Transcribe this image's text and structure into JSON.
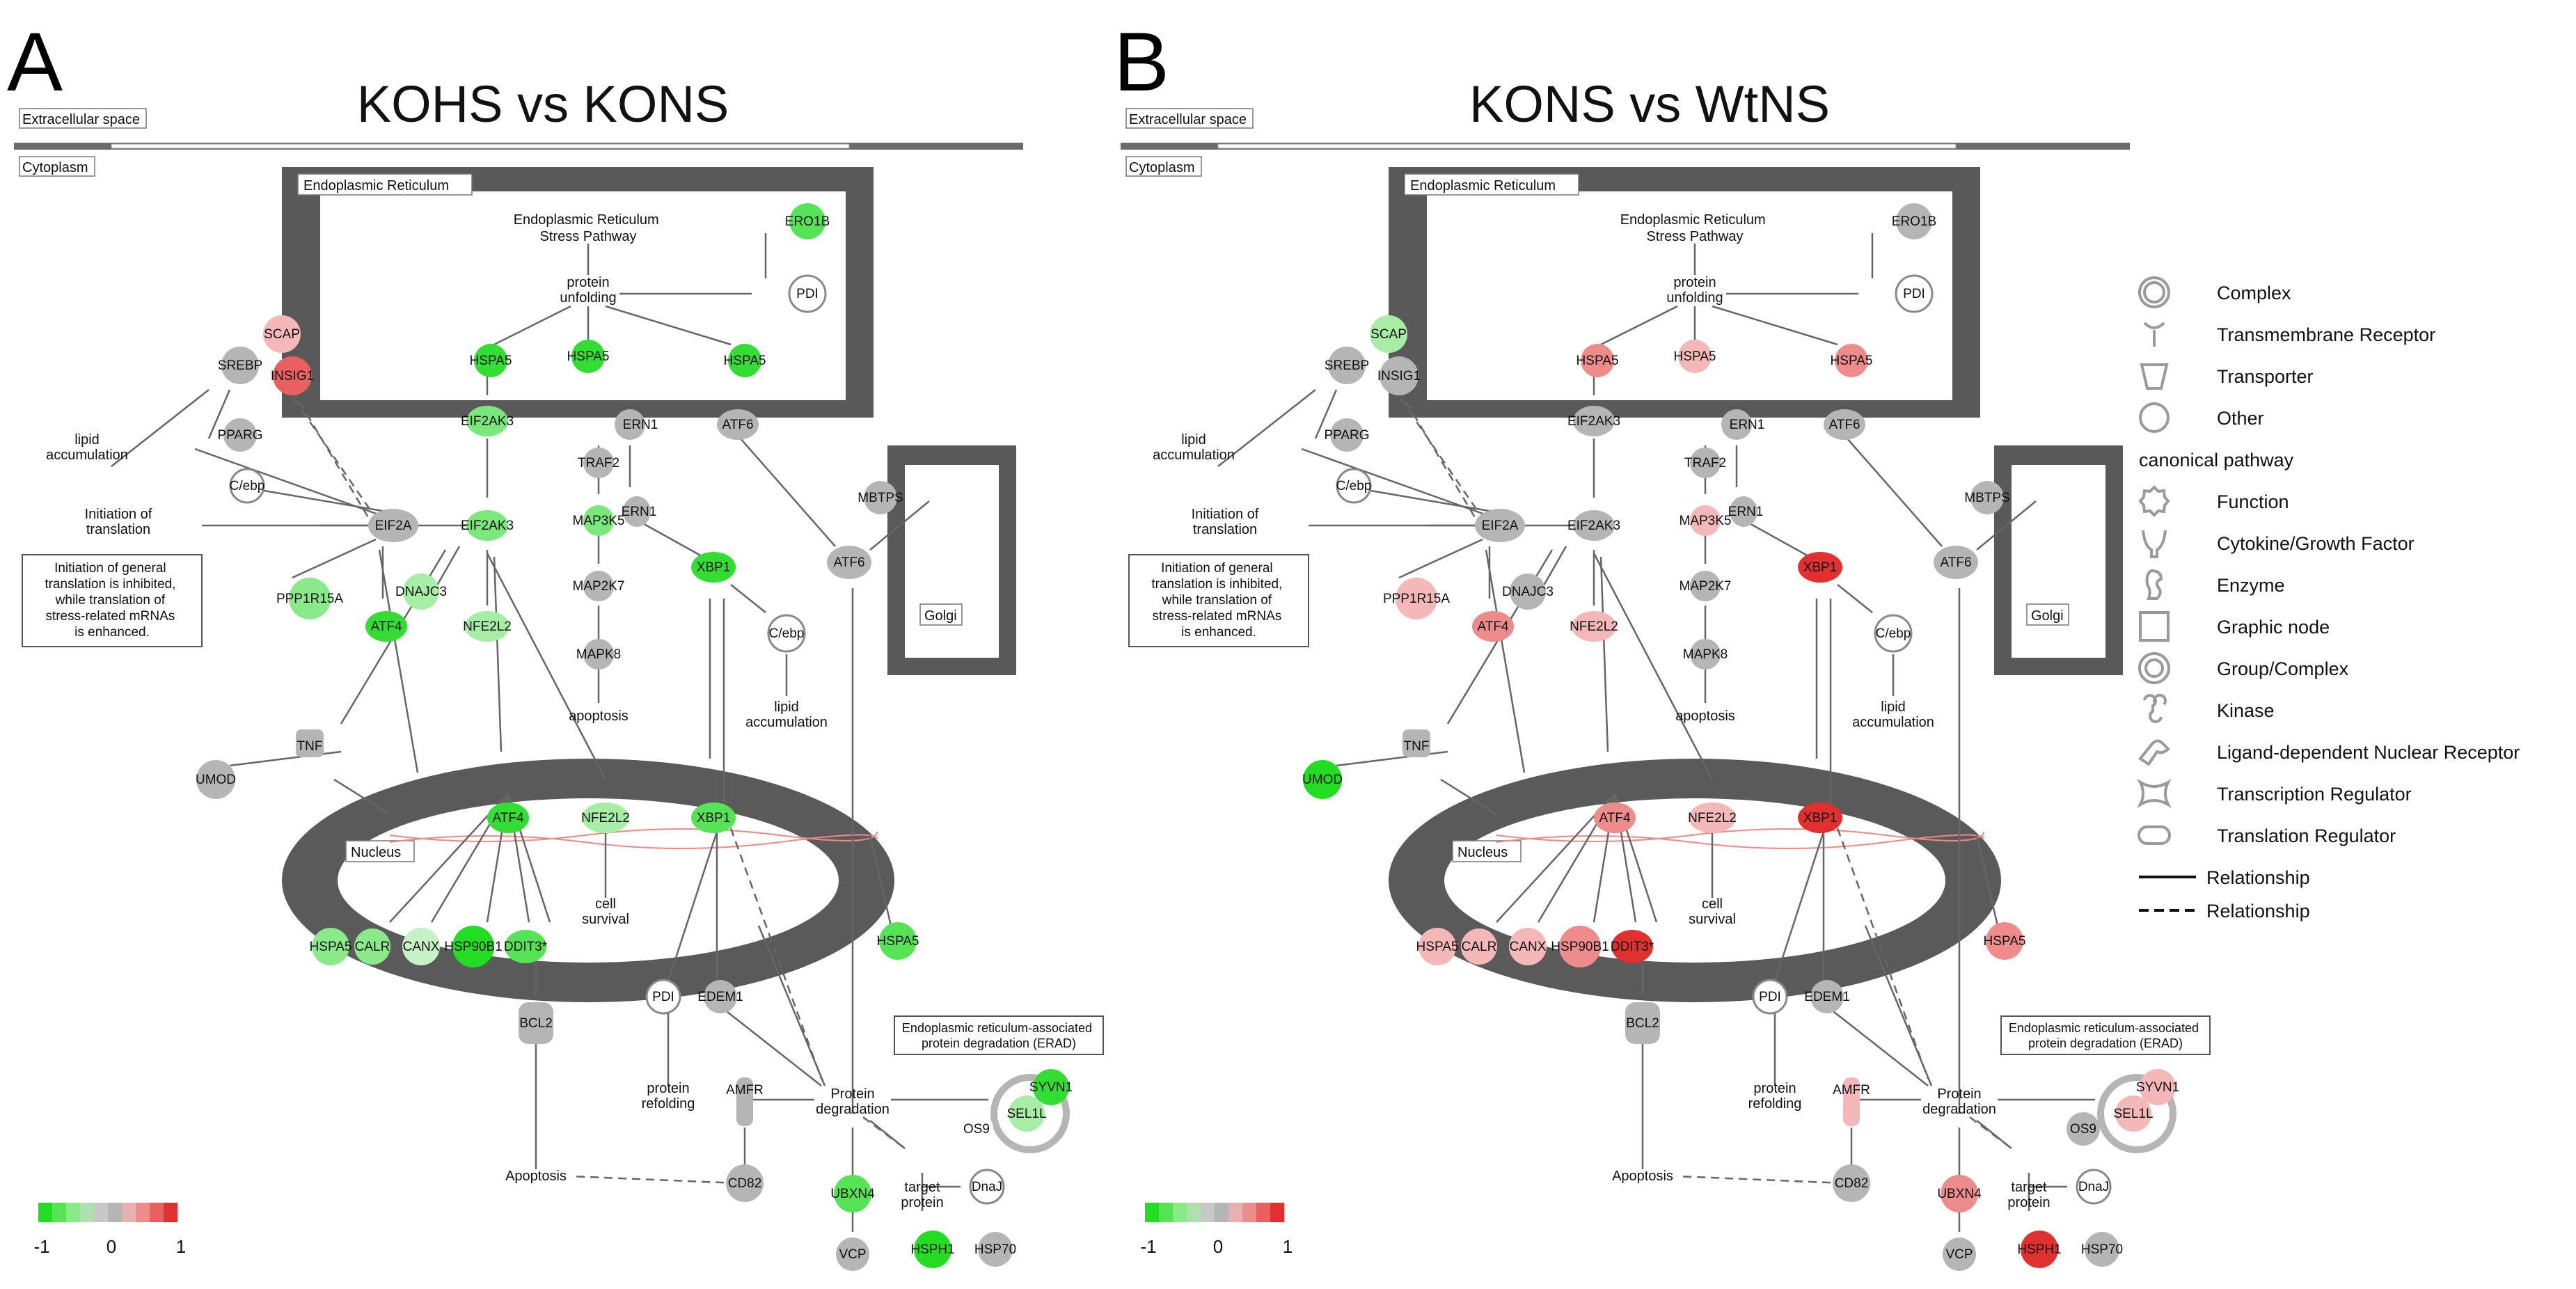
{
  "colors": {
    "up": "#e03030",
    "up_light": "#f4b8b8",
    "down": "#22dd22",
    "down_light": "#a6eea6",
    "neutral": "#b5b5b5",
    "compartment": "#595959"
  },
  "panels": [
    {
      "letter": "A",
      "title": "KOHS vs KONS",
      "colorbar_ticks": [
        "-1",
        "0",
        "1"
      ],
      "pathway": {
        "extracellular": "Extracellular space",
        "cytoplasm": "Cytoplasm",
        "er": "Endoplasmic Reticulum",
        "golgi": "Golgi",
        "nucleus": "Nucleus",
        "er_stress": "Endoplasmic Reticulum Stress Pathway",
        "erad_label": "Endoplasmic reticulum-associated protein degradation (ERAD)",
        "callout": "Initiation of general translation is inhibited, while translation of stress-related mRNAs is enhanced."
      },
      "node_colors": {
        "ERO1B": "#56e356",
        "PDI_er": "#ffffff",
        "HSPA5_1": "#33dd33",
        "HSPA5_2": "#33dd33",
        "HSPA5_3": "#33dd33",
        "SCAP": "#f4b8b8",
        "INSIG1": "#e86060",
        "SREBP": "#b5b5b5",
        "PPARG": "#b5b5b5",
        "Cebp": "#ffffff",
        "EIF2A": "#b5b5b5",
        "EIF2AK3_er": "#7ae87a",
        "EIF2AK3": "#7ae87a",
        "ERN1_top": "#b5b5b5",
        "TRAF2": "#b5b5b5",
        "ATF6_top": "#b5b5b5",
        "MAP3K5": "#7ae87a",
        "ERN1": "#b5b5b5",
        "XBP1": "#33dd33",
        "ATF6": "#b5b5b5",
        "MBTPS": "#b5b5b5",
        "PPP1R15A": "#8aea8a",
        "DNAJC3": "#a6eea6",
        "ATF4": "#33dd33",
        "NFE2L2": "#a6eea6",
        "MAP2K7": "#b5b5b5",
        "MAPK8": "#b5b5b5",
        "Cebp2": "#ffffff",
        "TNF": "#b5b5b5",
        "UMOD": "#b5b5b5",
        "ATF4_n": "#33dd33",
        "NFE2L2_n": "#a6eea6",
        "XBP1_n": "#56e356",
        "HSPA5_n": "#8aea8a",
        "CALR": "#8aea8a",
        "CANX": "#c6f2c6",
        "HSP90B1": "#22dd22",
        "DDIT3": "#56e356",
        "PDI_n": "#ffffff",
        "EDEM1": "#b5b5b5",
        "HSPA5_r": "#56e356",
        "BCL2": "#b5b5b5",
        "AMFR": "#b5b5b5",
        "SYVN1": "#33dd33",
        "SEL1L": "#a6eea6",
        "OS9": "#ffffff",
        "CD82": "#b5b5b5",
        "UBXN4": "#56e356",
        "VCP": "#b5b5b5",
        "HSPH1": "#22dd22",
        "HSP70": "#b5b5b5",
        "DnaJ": "#ffffff"
      }
    },
    {
      "letter": "B",
      "title": "KONS vs WtNS",
      "colorbar_ticks": [
        "-1",
        "0",
        "1"
      ],
      "pathway": {
        "extracellular": "Extracellular space",
        "cytoplasm": "Cytoplasm",
        "er": "Endoplasmic Reticulum",
        "golgi": "Golgi",
        "nucleus": "Nucleus",
        "er_stress": "Endoplasmic Reticulum Stress Pathway",
        "erad_label": "Endoplasmic reticulum-associated protein degradation (ERAD)",
        "callout": "Initiation of general translation is inhibited, while translation of stress-related mRNAs is enhanced."
      },
      "node_colors": {
        "ERO1B": "#b5b5b5",
        "PDI_er": "#ffffff",
        "HSPA5_1": "#ee8c8c",
        "HSPA5_2": "#f4b8b8",
        "HSPA5_3": "#ee8c8c",
        "SCAP": "#a6eea6",
        "INSIG1": "#b5b5b5",
        "SREBP": "#b5b5b5",
        "PPARG": "#b5b5b5",
        "Cebp": "#ffffff",
        "EIF2A": "#b5b5b5",
        "EIF2AK3_er": "#b5b5b5",
        "EIF2AK3": "#b5b5b5",
        "ERN1_top": "#b5b5b5",
        "TRAF2": "#b5b5b5",
        "ATF6_top": "#b5b5b5",
        "MAP3K5": "#f4b8b8",
        "ERN1": "#b5b5b5",
        "XBP1": "#e03030",
        "ATF6": "#b5b5b5",
        "MBTPS": "#b5b5b5",
        "PPP1R15A": "#f4b8b8",
        "DNAJC3": "#b5b5b5",
        "ATF4": "#ee8c8c",
        "NFE2L2": "#f4b8b8",
        "MAP2K7": "#b5b5b5",
        "MAPK8": "#b5b5b5",
        "Cebp2": "#ffffff",
        "TNF": "#b5b5b5",
        "UMOD": "#22dd22",
        "ATF4_n": "#ee8c8c",
        "NFE2L2_n": "#f4b8b8",
        "XBP1_n": "#e03030",
        "HSPA5_n": "#f4b8b8",
        "CALR": "#f4b8b8",
        "CANX": "#f4b8b8",
        "HSP90B1": "#ee8c8c",
        "DDIT3": "#e03030",
        "PDI_n": "#ffffff",
        "EDEM1": "#b5b5b5",
        "HSPA5_r": "#ee8c8c",
        "BCL2": "#b5b5b5",
        "AMFR": "#f4b8b8",
        "SYVN1": "#f4b8b8",
        "SEL1L": "#f4b8b8",
        "OS9": "#b5b5b5",
        "CD82": "#b5b5b5",
        "UBXN4": "#ee8c8c",
        "VCP": "#b5b5b5",
        "HSPH1": "#e03030",
        "HSP70": "#b5b5b5",
        "DnaJ": "#ffffff"
      }
    }
  ],
  "legend": [
    {
      "icon": "complex-icon",
      "label": "Complex"
    },
    {
      "icon": "transmembrane-receptor-icon",
      "label": "Transmembrane Receptor"
    },
    {
      "icon": "transporter-icon",
      "label": "Transporter"
    },
    {
      "icon": "other-icon",
      "label": "Other"
    },
    {
      "icon": "",
      "label": "canonical pathway"
    },
    {
      "icon": "function-icon",
      "label": "Function"
    },
    {
      "icon": "cytokine-growth-factor-icon",
      "label": "Cytokine/Growth Factor"
    },
    {
      "icon": "enzyme-icon",
      "label": "Enzyme"
    },
    {
      "icon": "graphic-node-icon",
      "label": "Graphic node"
    },
    {
      "icon": "group-complex-icon",
      "label": "Group/Complex"
    },
    {
      "icon": "kinase-icon",
      "label": "Kinase"
    },
    {
      "icon": "ligand-dependent-nuclear-receptor-icon",
      "label": "Ligand-dependent Nuclear Receptor"
    },
    {
      "icon": "transcription-regulator-icon",
      "label": "Transcription Regulator"
    },
    {
      "icon": "translation-regulator-icon",
      "label": "Translation Regulator"
    },
    {
      "icon": "solid-line-icon",
      "label": "Relationship"
    },
    {
      "icon": "dashed-line-icon",
      "label": "Relationship"
    }
  ]
}
